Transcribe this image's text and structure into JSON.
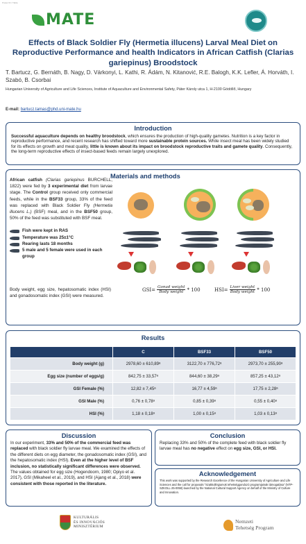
{
  "header": {
    "tag": "Poster ID / Tábla",
    "logo_text": "MATE",
    "title": "Effects of Black Soldier Fly (Hermetia illucens) Larval Meal Diet on Reproductive Performance and health Indicators in African Catfish (Clarias gariepinus) Broodstock",
    "authors": "T. Bartucz, G. Bernáth, B. Nagy, D. Várkonyi, L. Kathi, R. Ádám, N. Kitanović, R.E. Balogh, K.K. Lefler, Á. Horváth, I. Szabó, B. Csorbai",
    "affiliation": "Hungarian University of Agriculture and Life Sciences, Institute of Aquaculture and Environmental Safety, Páter Károly utca 1, H-2100 Gödöllő, Hungary",
    "email_label": "E-mail:",
    "email": "bartucz.tamas@phd.uni-mate.hu"
  },
  "intro": {
    "heading": "Introduction",
    "s1": "Successful aquaculture depends on healthy broodstock",
    "s2": ", which ensures the production of high-quality gametes. Nutrition is a key factor in reproductive performance, and recent research has shifted toward more ",
    "s3": "sustainable protein sources.",
    "s4": " While insect meal has been widely studied for its effects on growth and meat quality, ",
    "s5": "little is known about its impact on broodstock reproductive traits and gamete quality",
    "s6": ". Consequently, the long-term reproductive effects of insect-based feeds remain largely unexplored."
  },
  "methods": {
    "heading": "Materials and methods",
    "p1": "African catfish",
    "p2": "(Clarias gariepinus",
    "p3": "BURCHELL, 1822) were fed by",
    "p4": "3 experimental diet",
    "p5": "from larvae stage. The",
    "p6": "Control",
    "p7": "group received only commercial feeds, while in the",
    "p8": "BSF33",
    "p9": "group, 33% of the feed was replaced with Black Soldier Fly",
    "p10": "(Hermetia illucens L.)",
    "p11": "(BSF) meal, and in the",
    "p12": "BSF50",
    "p13": "group, 50% of the feed was substituted with BSF meal.",
    "bullets": [
      "Fish were kept in RAS",
      "Temperature was 25±1°C",
      "Rearing lasts 18 months",
      "5 male and 5 female were used in each group"
    ],
    "bottom": "Body weight, egg size, hepatosomatic index (HSI) and gonadosomatic index (GSI) were measured.",
    "gsi": {
      "label": "GSI=",
      "num": "Gonad weight",
      "den": "Body weight",
      "mult": "* 100"
    },
    "hsi": {
      "label": "HSI=",
      "num": "Liver weight",
      "den": "Body weight",
      "mult": "* 100"
    }
  },
  "results": {
    "heading": "Results",
    "columns": [
      "",
      "C",
      "BSF33",
      "BSF50"
    ],
    "rows": [
      {
        "label": "Body weight (g)",
        "c": "2978,60 ± 610,89ᵃ",
        "b33": "3122,70 ± 776,72ᵃ",
        "b50": "2973,70 ± 255,90ᵃ"
      },
      {
        "label": "Egg size (number of eggs/g)",
        "c": "842,75 ± 33,57ᵃ",
        "b33": "844,60 ± 38,29ᵃ",
        "b50": "857,25 ± 43,12ᵃ"
      },
      {
        "label": "GSI Female (%)",
        "c": "12,82 ± 7,45ᵃ",
        "b33": "16,77 ± 4,59ᵃ",
        "b50": "17,75 ± 2,28ᵃ"
      },
      {
        "label": "GSI Male (%)",
        "c": "0,76 ± 0,78ᵃ",
        "b33": "0,85 ± 0,39ᵃ",
        "b50": "0,55 ± 0,40ᵃ"
      },
      {
        "label": "HSI (%)",
        "c": "1,18 ± 0,18ᵃ",
        "b33": "1,00 ± 0,15ᵃ",
        "b50": "1,03 ± 0,13ᵃ"
      }
    ]
  },
  "discussion": {
    "heading": "Discussion",
    "d1": "In our experiment, ",
    "d2": "33% and 50% of the commercial feed was replaced",
    "d3": " with black soldier fly larvae meal. We examined the effects of the different diets on egg diameter, the gonadosomatic index (GSI), and the hepatosomatic index (HSI). ",
    "d4": "Even at the higher level of BSF inclusion, no statistically significant differences were observed.",
    "d5": " The values obtained for egg size (Hogendoorn, 1980; Opiyo et al. 2017), GSI (Mikaheel et al., 2019), and HSI (Ajang et al., 2018) ",
    "d6": "were consistent with those reported in the literature."
  },
  "conclusion": {
    "heading": "Conclusion",
    "c1": "Replacing 33% and 50% of the complete feed with black soldier fly larvae meal has ",
    "c2": "no negative",
    "c3": " effect on ",
    "c4": "egg size, GSI, or HSI."
  },
  "ack": {
    "heading": "Acknowledgement",
    "text": "This work was supported by the Research Excellence of the Hungarian University of Agriculture and Life Sciences and the call for proposals \"Szakkollégiumok tehetséggondozó programjainak támogatása\" (NTP-SZKOLL-25-0058) launched by the National Cultural Support Agency on behalf of the Ministry of Culture and Innovation."
  },
  "footer": {
    "ministry": [
      "KULTURÁLIS",
      "ÉS INNOVÁCIÓS",
      "MINISZTÉRIUM"
    ],
    "ntp": [
      "Nemzeti",
      "Tehetség Program"
    ]
  }
}
